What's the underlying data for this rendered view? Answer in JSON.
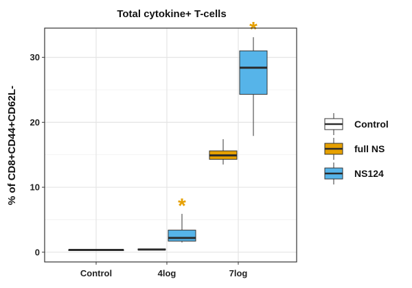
{
  "chart_data": {
    "type": "box",
    "title": "Total cytokine+ T-cells",
    "xlabel": "",
    "ylabel": "% of CD8+CD44+CD62L-",
    "categories": [
      "Control",
      "4log",
      "7log"
    ],
    "ylim": [
      -1.5,
      34.5
    ],
    "yticks": [
      0,
      10,
      20,
      30
    ],
    "grid": true,
    "legend_position": "right",
    "series": [
      {
        "name": "Control",
        "color": "#ffffff"
      },
      {
        "name": "full NS",
        "color": "#e6a000"
      },
      {
        "name": "NS124",
        "color": "#56b4e9"
      }
    ],
    "boxes": [
      {
        "category": "Control",
        "series": "Control",
        "min": 0.25,
        "q1": 0.3,
        "median": 0.35,
        "q3": 0.4,
        "max": 0.45
      },
      {
        "category": "4log",
        "series": "full NS",
        "min": 0.3,
        "q1": 0.35,
        "median": 0.42,
        "q3": 0.5,
        "max": 0.55
      },
      {
        "category": "4log",
        "series": "NS124",
        "min": 1.5,
        "q1": 1.7,
        "median": 2.2,
        "q3": 3.4,
        "max": 5.9,
        "significant": true
      },
      {
        "category": "7log",
        "series": "full NS",
        "min": 13.5,
        "q1": 14.3,
        "median": 14.9,
        "q3": 15.6,
        "max": 17.4
      },
      {
        "category": "7log",
        "series": "NS124",
        "min": 17.9,
        "q1": 24.3,
        "median": 28.4,
        "q3": 31.0,
        "max": 33.1,
        "significant": true
      }
    ],
    "annotations": [
      {
        "text": "*",
        "color": "#e6a000"
      }
    ]
  }
}
